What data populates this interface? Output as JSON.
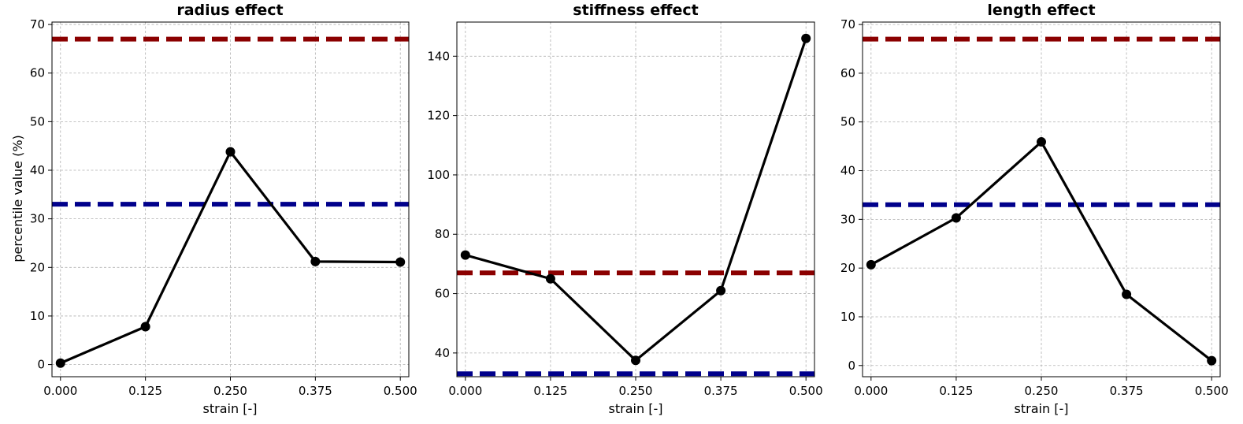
{
  "chart_data": [
    {
      "type": "line",
      "title": "radius effect",
      "xlabel": "strain [-]",
      "ylabel": "percentile value (%)",
      "x": [
        0.0,
        0.125,
        0.25,
        0.375,
        0.5
      ],
      "xticks": [
        "0.000",
        "0.125",
        "0.250",
        "0.375",
        "0.500"
      ],
      "xlim": [
        -0.0125,
        0.5125
      ],
      "ylim": [
        -2.5,
        70.5
      ],
      "yticks": [
        0,
        10,
        20,
        30,
        40,
        50,
        60,
        70
      ],
      "series": [
        {
          "name": "percentile value",
          "color": "#000000",
          "values": [
            0.3,
            7.8,
            43.8,
            21.2,
            21.1
          ]
        }
      ],
      "reference_lines": [
        {
          "name": "upper threshold",
          "y": 67,
          "color": "#8b0000"
        },
        {
          "name": "lower threshold",
          "y": 33,
          "color": "#00008b"
        }
      ],
      "grid": true
    },
    {
      "type": "line",
      "title": "stiffness effect",
      "xlabel": "strain [-]",
      "ylabel": "",
      "x": [
        0.0,
        0.125,
        0.25,
        0.375,
        0.5
      ],
      "xticks": [
        "0.000",
        "0.125",
        "0.250",
        "0.375",
        "0.500"
      ],
      "xlim": [
        -0.0125,
        0.5125
      ],
      "ylim": [
        32,
        151.5
      ],
      "yticks": [
        40,
        60,
        80,
        100,
        120,
        140
      ],
      "series": [
        {
          "name": "percentile value",
          "color": "#000000",
          "values": [
            73,
            65,
            37.5,
            61,
            146
          ]
        }
      ],
      "reference_lines": [
        {
          "name": "upper threshold",
          "y": 67,
          "color": "#8b0000"
        },
        {
          "name": "lower threshold",
          "y": 33,
          "color": "#00008b"
        }
      ],
      "grid": true
    },
    {
      "type": "line",
      "title": "length effect",
      "xlabel": "strain [-]",
      "ylabel": "",
      "x": [
        0.0,
        0.125,
        0.25,
        0.375,
        0.5
      ],
      "xticks": [
        "0.000",
        "0.125",
        "0.250",
        "0.375",
        "0.500"
      ],
      "xlim": [
        -0.0125,
        0.5125
      ],
      "ylim": [
        -2.3,
        70.5
      ],
      "yticks": [
        0,
        10,
        20,
        30,
        40,
        50,
        60,
        70
      ],
      "series": [
        {
          "name": "percentile value",
          "color": "#000000",
          "values": [
            20.7,
            30.3,
            45.9,
            14.6,
            1.0
          ]
        }
      ],
      "reference_lines": [
        {
          "name": "upper threshold",
          "y": 67,
          "color": "#8b0000"
        },
        {
          "name": "lower threshold",
          "y": 33,
          "color": "#00008b"
        }
      ],
      "grid": true
    }
  ]
}
